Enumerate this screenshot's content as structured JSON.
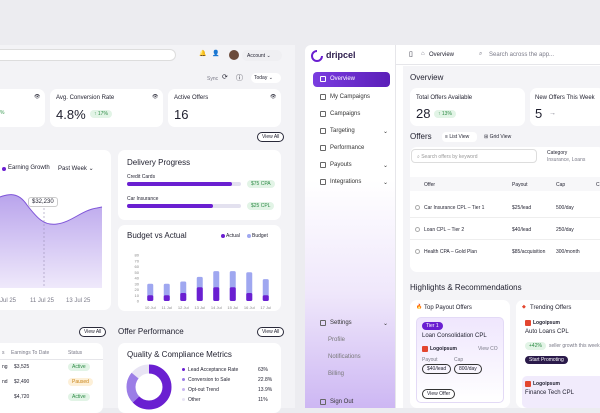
{
  "dash": {
    "account_label": "Account",
    "sync_label": "Sync",
    "today_label": "Today",
    "stat_left_value": "%",
    "conv_label": "Avg. Conversion Rate",
    "conv_value": "4.8%",
    "conv_delta": "↑ 17%",
    "active_offers_label": "Active Offers",
    "active_offers_value": "16",
    "view_all": "View All",
    "earning_growth": "Earning Growth",
    "past_week": "Past Week",
    "tooltip": "$32,230",
    "xlabels": [
      "Jul 25",
      "11 Jul 25",
      "13 Jul 25"
    ],
    "delivery_title": "Delivery Progress",
    "delivery": [
      {
        "name": "Credit Cards",
        "value": "$75 CPA",
        "pct": 0.92
      },
      {
        "name": "Car Insurance",
        "value": "$25 CPL",
        "pct": 0.75
      }
    ],
    "budget_title": "Budget vs Actual",
    "legend_actual": "Actual",
    "legend_budget": "Budget",
    "offer_perf": "Offer Performance",
    "quality_title": "Quality & Compliance Metrics",
    "quality": [
      {
        "label": "Lead Acceptance Rate",
        "value": "63%"
      },
      {
        "label": "Conversion to Sale",
        "value": "22.8%"
      },
      {
        "label": "Opt-out Trend",
        "value": "13.9%"
      },
      {
        "label": "Other",
        "value": "11%"
      }
    ],
    "table_headers": [
      "s",
      "Earnings To Date",
      "Status"
    ],
    "table_rows": [
      {
        "a": "ng",
        "b": "$3,525",
        "c": "Active"
      },
      {
        "a": "nd",
        "b": "$2,490",
        "c": "Paused"
      },
      {
        "a": "",
        "b": "$4,720",
        "c": "Active"
      }
    ]
  },
  "chart_data": {
    "type": "bar",
    "title": "Budget vs Actual",
    "categories": [
      "10 Jul",
      "11 Jul",
      "12 Jul",
      "13 Jul",
      "14 Jul",
      "15 Jul",
      "16 Jul",
      "17 Jul"
    ],
    "yticks": [
      "0",
      "10",
      "20",
      "30",
      "40",
      "50",
      "60",
      "70",
      "80"
    ],
    "ylim": [
      0,
      80
    ],
    "series": [
      {
        "name": "Actual",
        "values": [
          10,
          10,
          14,
          24,
          24,
          24,
          14,
          10
        ]
      },
      {
        "name": "Budget",
        "values": [
          30,
          30,
          34,
          42,
          52,
          52,
          50,
          38
        ]
      }
    ]
  },
  "app": {
    "logo": "dripcel",
    "breadcrumb": "Overview",
    "search_placeholder": "Search across the app...",
    "nav": [
      "Overview",
      "My Campaigns",
      "Campaigns",
      "Targeting",
      "Performance",
      "Payouts",
      "Integrations"
    ],
    "nav_bottom": [
      "Settings",
      "Profile",
      "Notifications",
      "Billing"
    ],
    "signout": "Sign Out",
    "overview_title": "Overview",
    "total_offers_label": "Total Offers Available",
    "total_offers_value": "28",
    "total_offers_delta": "↑ 13%",
    "new_offers_label": "New Offers This Week",
    "new_offers_value": "5",
    "offers_title": "Offers",
    "list_view": "List View",
    "grid_view": "Grid View",
    "offer_search_placeholder": "Search offers by keyword",
    "category_label": "Category",
    "category_value": "Insurance, Loans",
    "offer_headers": [
      "Offer",
      "Payout",
      "Cap",
      "C"
    ],
    "offer_rows": [
      {
        "name": "Car Insurance CPL – Tier 1",
        "payout": "$25/lead",
        "cap": "500/day"
      },
      {
        "name": "Loan CPL – Tier 2",
        "payout": "$40/lead",
        "cap": "250/day"
      },
      {
        "name": "Health CPA – Gold Plan",
        "payout": "$85/acquisition",
        "cap": "300/month"
      }
    ],
    "highlights_title": "Highlights & Recommendations",
    "top_payout": "Top Payout Offers",
    "trending": "Trending Offers",
    "tier": "Tier 1",
    "loan_title": "Loan Consolidation CPL",
    "logoipsum": "Logoipsum",
    "view_cpl": "View CO",
    "payout_label": "Payout",
    "cap_label": "Cap",
    "payout_value": "$40/lead",
    "cap_value": "800/day",
    "view_offer": "View Offer",
    "auto_loans": "Auto Loans CPL",
    "trend_delta": "+42%",
    "trend_note": "seller growth this week",
    "start_promoting": "Start Promoting",
    "finance_tech": "Finance Tech CPL"
  }
}
